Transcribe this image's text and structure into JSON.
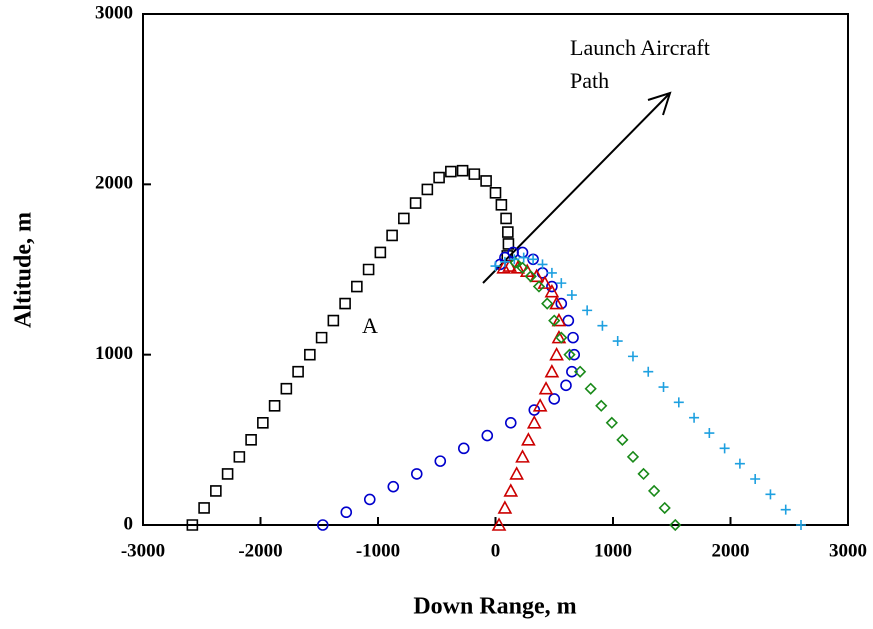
{
  "chart_data": {
    "type": "scatter",
    "xlabel": "Down Range, m",
    "ylabel": "Altitude, m",
    "annotations": [
      "Launch Aircraft",
      "Path",
      "A"
    ],
    "xlim": [
      -3000,
      3000
    ],
    "xticks": [
      -3000,
      -2000,
      -1000,
      0,
      1000,
      2000,
      3000
    ],
    "ylim": [
      0,
      3000
    ],
    "yticks": [
      0,
      1000,
      2000,
      3000
    ],
    "series": [
      {
        "color": "#000000",
        "marker": "square",
        "x": [
          -2580,
          -2480,
          -2380,
          -2280,
          -2180,
          -2080,
          -1980,
          -1880,
          -1780,
          -1680,
          -1580,
          -1480,
          -1380,
          -1280,
          -1180,
          -1080,
          -980,
          -880,
          -780,
          -680,
          -580,
          -480,
          -380,
          -280,
          -180,
          -80,
          0,
          50,
          90,
          105,
          110,
          100
        ],
        "values": [
          0,
          100,
          200,
          300,
          400,
          500,
          600,
          700,
          800,
          900,
          1000,
          1100,
          1200,
          1300,
          1400,
          1500,
          1600,
          1700,
          1800,
          1890,
          1970,
          2040,
          2075,
          2080,
          2060,
          2020,
          1950,
          1880,
          1800,
          1720,
          1650,
          1580
        ]
      },
      {
        "color": "#0000cc",
        "marker": "circle",
        "x": [
          -1470,
          -1270,
          -1070,
          -870,
          -670,
          -470,
          -270,
          -70,
          130,
          330,
          500,
          600,
          650,
          670,
          660,
          620,
          560,
          480,
          400,
          320,
          230,
          150,
          80,
          40
        ],
        "values": [
          0,
          75,
          150,
          225,
          300,
          375,
          450,
          525,
          600,
          675,
          740,
          820,
          900,
          1000,
          1100,
          1200,
          1300,
          1400,
          1480,
          1560,
          1600,
          1600,
          1570,
          1530
        ]
      },
      {
        "color": "#cc0000",
        "marker": "triangle",
        "x": [
          30,
          80,
          130,
          180,
          230,
          280,
          330,
          380,
          430,
          480,
          520,
          540,
          540,
          520,
          480,
          420,
          350,
          270,
          190,
          120,
          70
        ],
        "values": [
          0,
          100,
          200,
          300,
          400,
          500,
          600,
          700,
          800,
          900,
          1000,
          1100,
          1200,
          1300,
          1370,
          1420,
          1460,
          1490,
          1510,
          1520,
          1510
        ]
      },
      {
        "color": "#1a8a1a",
        "marker": "diamond",
        "x": [
          1530,
          1440,
          1350,
          1260,
          1170,
          1080,
          990,
          900,
          810,
          720,
          630,
          560,
          500,
          440,
          370,
          300,
          230,
          170
        ],
        "values": [
          0,
          100,
          200,
          300,
          400,
          500,
          600,
          700,
          800,
          900,
          1000,
          1100,
          1200,
          1300,
          1400,
          1460,
          1510,
          1540
        ]
      },
      {
        "color": "#1ea0e0",
        "marker": "plus",
        "x": [
          2600,
          2470,
          2340,
          2210,
          2080,
          1950,
          1820,
          1690,
          1560,
          1430,
          1300,
          1170,
          1040,
          910,
          780,
          650,
          560,
          480,
          400,
          320,
          240,
          160,
          80,
          0
        ],
        "values": [
          0,
          90,
          180,
          270,
          360,
          450,
          540,
          630,
          720,
          810,
          900,
          990,
          1080,
          1170,
          1260,
          1350,
          1420,
          1480,
          1530,
          1560,
          1570,
          1560,
          1545,
          1520
        ]
      }
    ]
  }
}
